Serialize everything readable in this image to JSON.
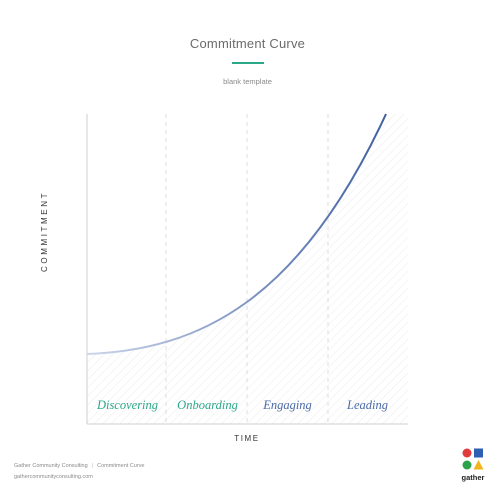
{
  "header": {
    "title": "Commitment Curve",
    "subtitle": "blank template",
    "accent_color": "#2aa888"
  },
  "axes": {
    "y_label": "COMMITMENT",
    "x_label": "TIME"
  },
  "stages": [
    {
      "label": "Discovering",
      "color": "#2aa888"
    },
    {
      "label": "Onboarding",
      "color": "#2aa888"
    },
    {
      "label": "Engaging",
      "color": "#4a6aa8"
    },
    {
      "label": "Leading",
      "color": "#4a6aa8"
    }
  ],
  "curve": {
    "start_color": "#cdd6ea",
    "end_color": "#3f5fa0"
  },
  "footer": {
    "org": "Gather Community Consulting",
    "doc": "Commitment Curve",
    "url": "gathercommunityconsulting.com"
  },
  "logo": {
    "text": "gather",
    "shapes": [
      {
        "name": "red-circle",
        "color": "#e23b3b"
      },
      {
        "name": "blue-square",
        "color": "#2f5fb0"
      },
      {
        "name": "green-circle",
        "color": "#2aa34a"
      },
      {
        "name": "yellow-triangle",
        "color": "#f2b51d"
      }
    ]
  }
}
